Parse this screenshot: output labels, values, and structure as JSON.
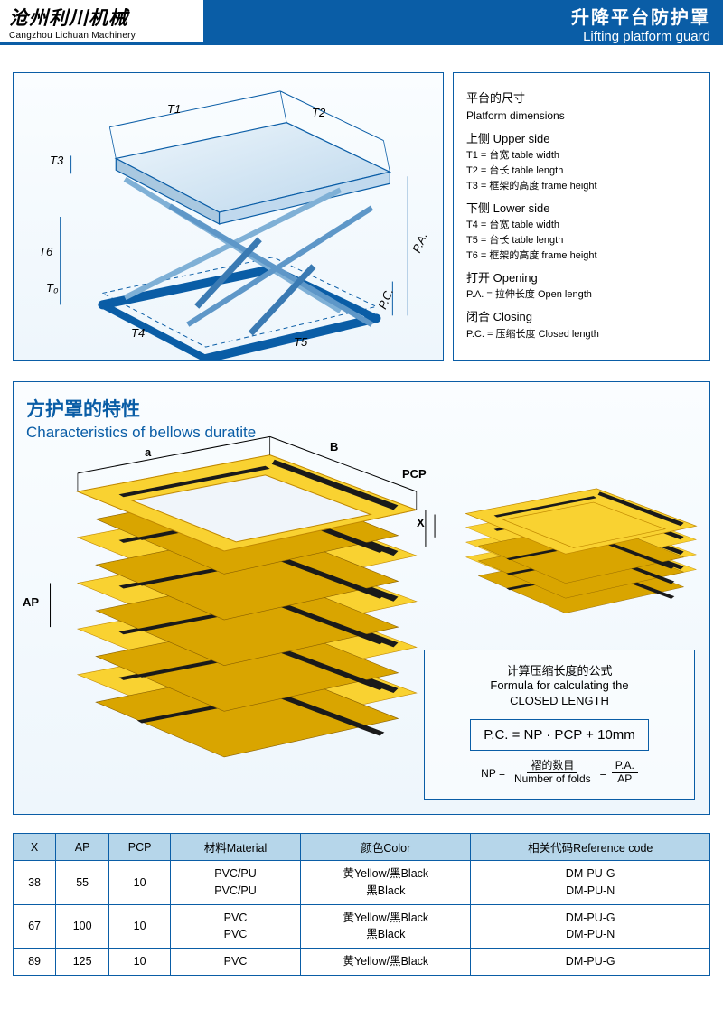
{
  "header": {
    "company_cn": "沧州利川机械",
    "company_en": "Cangzhou Lichuan Machinery",
    "product_cn": "升降平台防护罩",
    "product_en": "Lifting platform guard"
  },
  "dimensions": {
    "title_cn": "平台的尺寸",
    "title_en": "Platform dimensions",
    "upper_cn": "上侧 Upper side",
    "upper_items": [
      "T1 = 台宽 table width",
      "T2 = 台长 table length",
      "T3 = 框架的高度 frame height"
    ],
    "lower_cn": "下侧 Lower side",
    "lower_items": [
      "T4 = 台宽 table width",
      "T5 = 台长 table length",
      "T6 = 框架的高度 frame height"
    ],
    "opening_cn": "打开 Opening",
    "opening_item": "P.A. = 拉伸长度 Open length",
    "closing_cn": "闭合 Closing",
    "closing_item": "P.C. = 压缩长度 Closed length"
  },
  "diagram_labels": {
    "T1": "T1",
    "T2": "T2",
    "T3": "T3",
    "T4": "T4",
    "T5": "T5",
    "T6": "T6",
    "PA": "P.A.",
    "PC": "P.C.",
    "T0": "T₀"
  },
  "bellows": {
    "title_cn": "方护罩的特性",
    "title_en": "Characteristics of bellows duratite",
    "labels": {
      "a": "a",
      "B": "B",
      "X": "X",
      "AP": "AP",
      "PCP": "PCP"
    }
  },
  "formula": {
    "title_cn": "计算压缩长度的公式",
    "title_en1": "Formula for calculating the",
    "title_en2": "CLOSED LENGTH",
    "pc_formula": "P.C. = NP · PCP + 10mm",
    "np_label": "NP =",
    "frac1_top": "褶的数目",
    "frac1_bot": "Number of folds",
    "eq": "=",
    "frac2_top": "P.A.",
    "frac2_bot": "AP"
  },
  "table": {
    "headers": [
      "X",
      "AP",
      "PCP",
      "材料Material",
      "颜色Color",
      "相关代码Reference code"
    ],
    "rows": [
      {
        "X": "38",
        "AP": "55",
        "PCP": "10",
        "material": [
          "PVC/PU",
          "PVC/PU"
        ],
        "color": [
          "黄Yellow/黑Black",
          "黑Black"
        ],
        "code": [
          "DM-PU-G",
          "DM-PU-N"
        ]
      },
      {
        "X": "67",
        "AP": "100",
        "PCP": "10",
        "material": [
          "PVC",
          "PVC"
        ],
        "color": [
          "黄Yellow/黑Black",
          "黑Black"
        ],
        "code": [
          "DM-PU-G",
          "DM-PU-N"
        ]
      },
      {
        "X": "89",
        "AP": "125",
        "PCP": "10",
        "material": [
          "PVC",
          ""
        ],
        "color": [
          "黄Yellow/黑Black",
          ""
        ],
        "code": [
          "DM-PU-G",
          ""
        ]
      }
    ]
  },
  "colors": {
    "brand": "#0a5da6",
    "table_header_bg": "#b6d6ea",
    "bellows_yellow": "#f9d231",
    "bellows_yellow_dark": "#d9a500",
    "bellows_black": "#1a1a1a",
    "platform_fill": "#d4e6f4",
    "platform_stroke": "#0a5da6"
  }
}
